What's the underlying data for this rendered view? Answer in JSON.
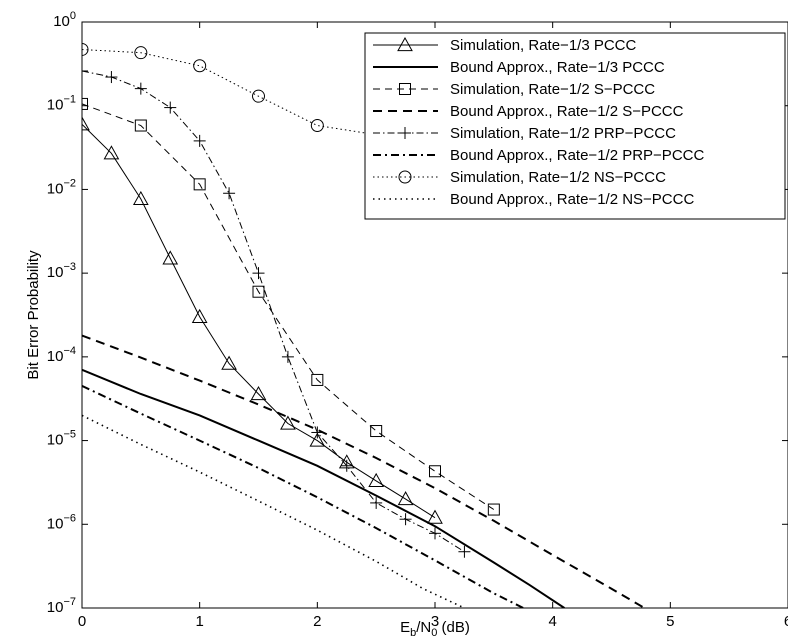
{
  "chart_data": {
    "type": "line",
    "title": "",
    "xlabel": {
      "base": "E",
      "sub1": "b",
      "mid": "/N",
      "sub2": "0",
      "tail": " (dB)"
    },
    "ylabel": "Bit Error Probability",
    "xlim": [
      0,
      6
    ],
    "ylim": [
      1e-07,
      1
    ],
    "yscale": "log",
    "grid": false,
    "legend_position": "top-right",
    "x_ticks": [
      "0",
      "1",
      "2",
      "3",
      "4",
      "5",
      "6"
    ],
    "y_ticks": [
      {
        "base": "10",
        "exp": "0"
      },
      {
        "base": "10",
        "exp": "−1"
      },
      {
        "base": "10",
        "exp": "−2"
      },
      {
        "base": "10",
        "exp": "−3"
      },
      {
        "base": "10",
        "exp": "−4"
      },
      {
        "base": "10",
        "exp": "−5"
      },
      {
        "base": "10",
        "exp": "−6"
      },
      {
        "base": "10",
        "exp": "−7"
      }
    ],
    "series": [
      {
        "name": "Simulation, Rate−1/3 PCCC",
        "style": "solid-thin",
        "marker": "triangle",
        "x": [
          0,
          0.25,
          0.5,
          0.75,
          1.0,
          1.25,
          1.5,
          1.75,
          2.0,
          2.25,
          2.5,
          2.75,
          3.0
        ],
        "y": [
          0.06,
          0.027,
          0.0077,
          0.0015,
          0.0003,
          8.3e-05,
          3.6e-05,
          1.6e-05,
          1e-05,
          5.5e-06,
          3.3e-06,
          2e-06,
          1.2e-06
        ]
      },
      {
        "name": "Bound Approx., Rate−1/3 PCCC",
        "style": "solid-thick",
        "marker": "none",
        "x": [
          0,
          0.5,
          1.0,
          1.5,
          2.0,
          2.5,
          3.0,
          3.5,
          3.8,
          4.1
        ],
        "y": [
          7e-05,
          3.6e-05,
          2e-05,
          1e-05,
          5e-06,
          2.2e-06,
          9.5e-07,
          3.5e-07,
          1.9e-07,
          1e-07
        ]
      },
      {
        "name": "Simulation, Rate−1/2 S−PCCC",
        "style": "dashed-thin",
        "marker": "square",
        "x": [
          0,
          0.5,
          1.0,
          1.5,
          2.0,
          2.5,
          3.0,
          3.5
        ],
        "y": [
          0.105,
          0.058,
          0.0115,
          0.0006,
          5.3e-05,
          1.3e-05,
          4.3e-06,
          1.5e-06
        ]
      },
      {
        "name": "Bound Approx., Rate−1/2  S−PCCC",
        "style": "dashed-thick",
        "marker": "none",
        "x": [
          0,
          0.5,
          1.0,
          1.5,
          2.0,
          2.5,
          3.0,
          3.5,
          4.0,
          4.5,
          4.78
        ],
        "y": [
          0.00018,
          9.8e-05,
          5.2e-05,
          2.7e-05,
          1.35e-05,
          6.2e-06,
          2.7e-06,
          1.1e-06,
          4.3e-07,
          1.7e-07,
          1e-07
        ]
      },
      {
        "name": "Simulation, Rate−1/2 PRP−PCCC",
        "style": "dashdot-thin",
        "marker": "plus",
        "x": [
          0,
          0.25,
          0.5,
          0.75,
          1.0,
          1.25,
          1.5,
          1.75,
          2.0,
          2.25,
          2.5,
          2.75,
          3.0,
          3.25
        ],
        "y": [
          0.26,
          0.22,
          0.16,
          0.095,
          0.038,
          0.009,
          0.001,
          0.0001,
          1.25e-05,
          5e-06,
          1.8e-06,
          1.15e-06,
          7.8e-07,
          4.7e-07
        ]
      },
      {
        "name": "Bound Approx., Rate−1/2  PRP−PCCC",
        "style": "dashdot-thick",
        "marker": "none",
        "x": [
          0,
          0.5,
          1.0,
          1.5,
          2.0,
          2.5,
          3.0,
          3.5,
          3.75
        ],
        "y": [
          4.5e-05,
          2.1e-05,
          1e-05,
          4.7e-06,
          2.1e-06,
          9e-07,
          3.7e-07,
          1.5e-07,
          1e-07
        ]
      },
      {
        "name": "Simulation, Rate−1/2 NS−PCCC",
        "style": "dotted-thin",
        "marker": "circle",
        "x": [
          0,
          0.5,
          1.0,
          1.5,
          2.0,
          2.5
        ],
        "y": [
          0.47,
          0.43,
          0.3,
          0.13,
          0.058,
          0.045
        ]
      },
      {
        "name": "Bound Approx., Rate−1/2 NS−PCCC",
        "style": "dotted-thick",
        "marker": "none",
        "x": [
          0,
          0.5,
          1.0,
          1.5,
          2.0,
          2.5,
          2.9,
          3.25
        ],
        "y": [
          2e-05,
          9e-06,
          4.2e-06,
          1.9e-06,
          8.5e-07,
          3.6e-07,
          1.7e-07,
          1e-07
        ]
      }
    ]
  }
}
